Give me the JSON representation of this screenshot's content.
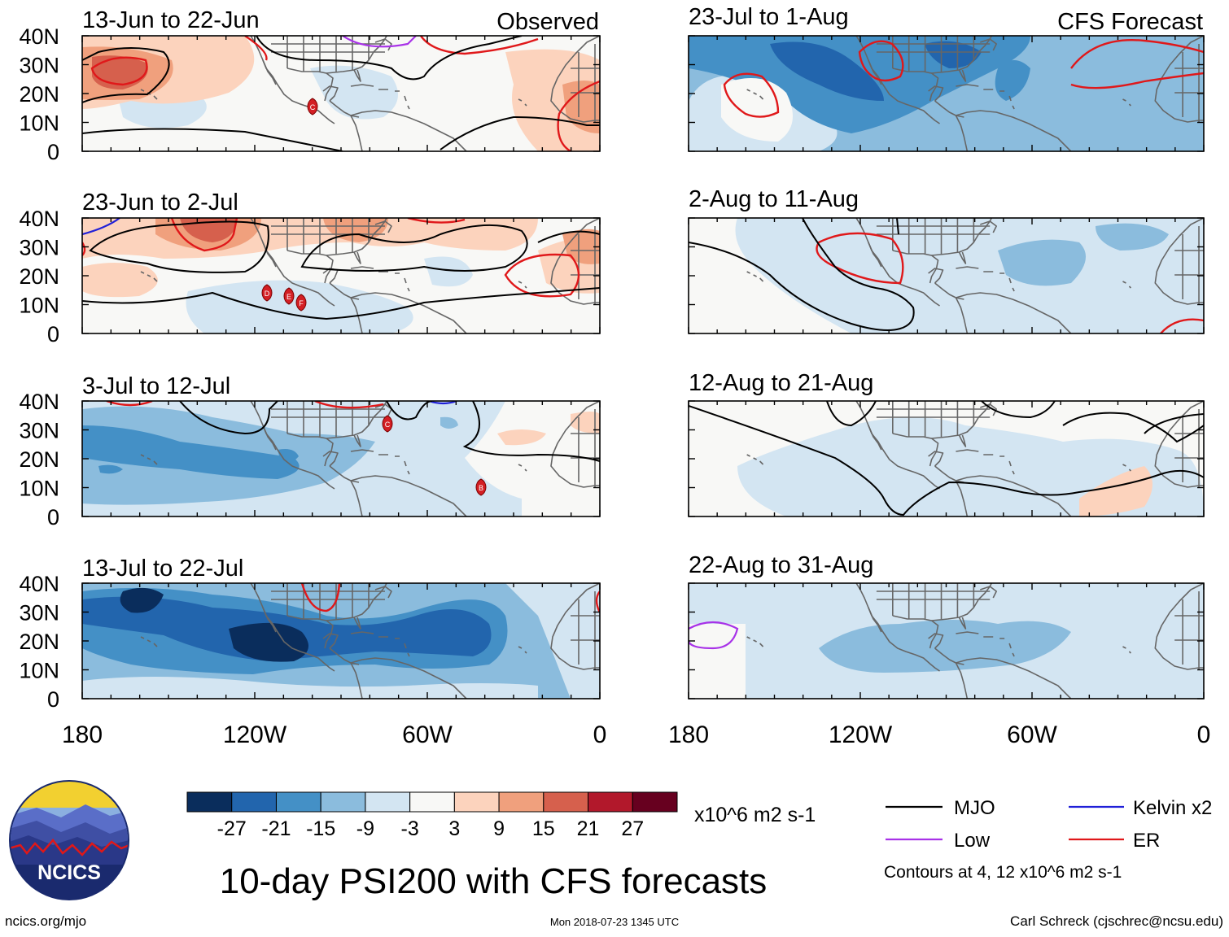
{
  "colors": {
    "neg4": "#0a2d5c",
    "neg3": "#2265ad",
    "neg2": "#4490c6",
    "neg1": "#8bbcdd",
    "neg0": "#d3e5f2",
    "zero": "#f8f8f6",
    "pos1": "#fcd3bd",
    "pos2": "#f0a07d",
    "pos3": "#d6604d",
    "pos4": "#b2182b",
    "pos5": "#67001f",
    "mjo": "#000000",
    "low": "#a832e8",
    "kelvin": "#2020d8",
    "er": "#e0181a",
    "coast": "#666666"
  },
  "header": {
    "left": "Observed",
    "right": "CFS Forecast"
  },
  "panels": {
    "p1": {
      "label": "13-Jun to 22-Jun"
    },
    "p2": {
      "label": "23-Jun to 2-Jul"
    },
    "p3": {
      "label": "3-Jul to 12-Jul"
    },
    "p4": {
      "label": "13-Jul to 22-Jul"
    },
    "p5": {
      "label": "23-Jul to 1-Aug"
    },
    "p6": {
      "label": "2-Aug to 11-Aug"
    },
    "p7": {
      "label": "12-Aug to 21-Aug"
    },
    "p8": {
      "label": "22-Aug to 31-Aug"
    }
  },
  "lat_labels": [
    "40N",
    "30N",
    "20N",
    "10N",
    "0"
  ],
  "lon_labels": [
    "180",
    "120W",
    "60W",
    "0"
  ],
  "storms": {
    "c1": "C",
    "d": "D",
    "e": "E",
    "f": "F",
    "c3": "C",
    "b": "B"
  },
  "colorbar": {
    "labels": [
      "-27",
      "-21",
      "-15",
      "-9",
      "-3",
      "3",
      "9",
      "15",
      "21",
      "27"
    ],
    "units": "x10^6 m2 s-1"
  },
  "legend": {
    "mjo": "MJO",
    "kelvin": "Kelvin x2",
    "low": "Low",
    "er": "ER",
    "note": "Contours at 4, 12 x10^6 m2 s-1"
  },
  "logo": {
    "text": "NCICS"
  },
  "title": "10-day PSI200 with CFS forecasts",
  "footer": {
    "left": "ncics.org/mjo",
    "center": "Mon 2018-07-23 1345 UTC",
    "right": "Carl Schreck (cjschrec@ncsu.edu)"
  }
}
